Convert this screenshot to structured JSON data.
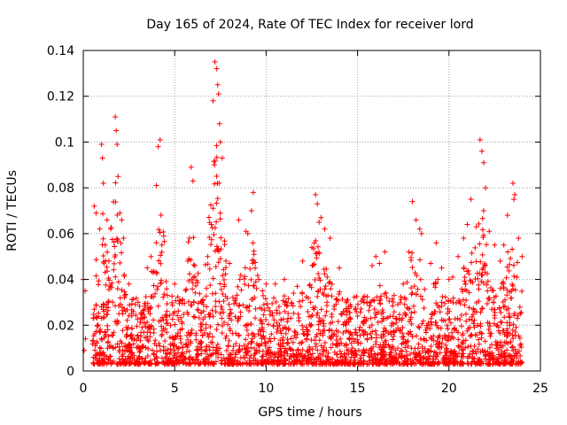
{
  "chart_data": {
    "type": "scatter",
    "title": "Day 165 of 2024, Rate Of TEC Index for receiver lord",
    "xlabel": "GPS time / hours",
    "ylabel": "ROTI / TECUs",
    "xlim": [
      0,
      25
    ],
    "ylim": [
      0,
      0.14
    ],
    "x_ticks": [
      0,
      5,
      10,
      15,
      20,
      25
    ],
    "x_tick_labels": [
      "0",
      "5",
      "10",
      "15",
      "20",
      "25"
    ],
    "y_ticks": [
      0,
      0.02,
      0.04,
      0.06,
      0.08,
      0.1,
      0.12,
      0.14
    ],
    "y_tick_labels": [
      "0",
      "0.02",
      "0.04",
      "0.06",
      "0.08",
      "0.1",
      "0.12",
      "0.14"
    ],
    "grid": true,
    "marker": "plus",
    "color": "#ff0000",
    "series": [
      {
        "x": [
          0.0,
          0.1,
          0.05,
          0.12,
          0.6,
          0.7,
          0.9,
          1.0,
          1.05,
          1.1,
          1.2,
          1.3,
          1.4,
          1.5,
          1.75,
          1.8,
          1.85,
          1.9,
          2.0,
          2.1,
          2.2,
          2.5,
          3.0,
          3.5,
          3.7,
          4.0,
          4.1,
          4.2,
          4.3,
          4.4,
          4.6,
          5.0,
          5.3,
          5.8,
          5.9,
          6.0,
          6.1,
          6.5,
          6.8,
          7.0,
          7.1,
          7.2,
          7.3,
          7.35,
          7.4,
          7.45,
          7.5,
          7.6,
          7.8,
          8.0,
          8.5,
          8.9,
          9.0,
          9.2,
          9.3,
          9.4,
          9.6,
          9.8,
          10.0,
          10.5,
          11.0,
          11.5,
          11.7,
          12.0,
          12.5,
          12.7,
          12.8,
          12.9,
          13.0,
          13.2,
          13.5,
          14.0,
          14.5,
          15.0,
          15.5,
          15.8,
          16.0,
          16.2,
          16.5,
          17.0,
          17.5,
          17.8,
          18.0,
          18.2,
          18.4,
          18.5,
          19.0,
          19.3,
          19.6,
          20.0,
          20.2,
          20.5,
          20.8,
          21.0,
          21.2,
          21.5,
          21.7,
          21.8,
          21.9,
          22.0,
          22.2,
          22.5,
          22.8,
          23.0,
          23.2,
          23.5,
          23.55,
          23.6,
          23.8,
          24.0
        ],
        "y": [
          0.04,
          0.035,
          0.009,
          0.014,
          0.072,
          0.069,
          0.062,
          0.099,
          0.093,
          0.082,
          0.055,
          0.066,
          0.048,
          0.062,
          0.111,
          0.105,
          0.099,
          0.085,
          0.069,
          0.066,
          0.058,
          0.038,
          0.03,
          0.045,
          0.05,
          0.081,
          0.098,
          0.101,
          0.055,
          0.059,
          0.033,
          0.038,
          0.018,
          0.058,
          0.089,
          0.083,
          0.046,
          0.03,
          0.05,
          0.064,
          0.118,
          0.135,
          0.132,
          0.125,
          0.121,
          0.108,
          0.1,
          0.093,
          0.048,
          0.047,
          0.066,
          0.061,
          0.06,
          0.07,
          0.078,
          0.045,
          0.04,
          0.035,
          0.038,
          0.038,
          0.04,
          0.034,
          0.037,
          0.048,
          0.054,
          0.077,
          0.073,
          0.065,
          0.067,
          0.062,
          0.058,
          0.045,
          0.028,
          0.024,
          0.03,
          0.046,
          0.05,
          0.047,
          0.052,
          0.033,
          0.038,
          0.052,
          0.074,
          0.066,
          0.062,
          0.06,
          0.047,
          0.056,
          0.045,
          0.04,
          0.041,
          0.05,
          0.058,
          0.064,
          0.075,
          0.063,
          0.101,
          0.096,
          0.091,
          0.08,
          0.061,
          0.055,
          0.048,
          0.055,
          0.068,
          0.082,
          0.075,
          0.077,
          0.058,
          0.05
        ]
      }
    ],
    "background_density_note": ""
  }
}
